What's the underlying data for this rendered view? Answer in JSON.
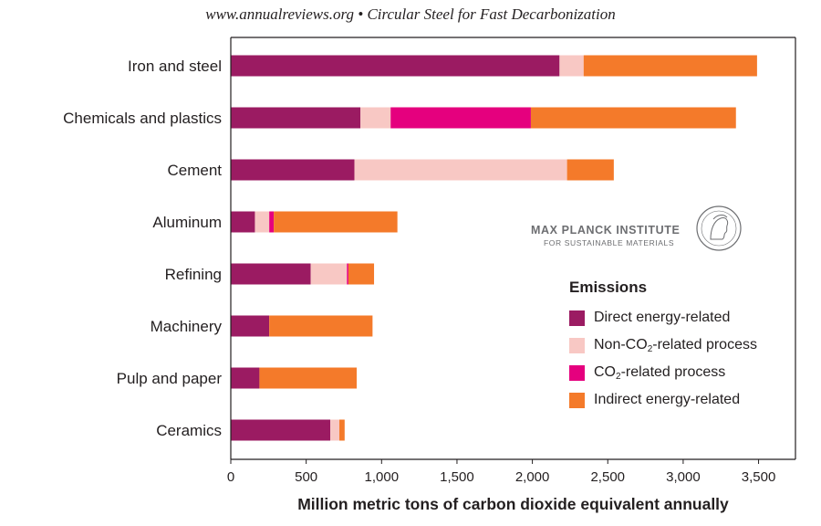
{
  "header": "www.annualreviews.org • Circular Steel for Fast Decarbonization",
  "watermark": {
    "title": "MAX PLANCK INSTITUTE",
    "subtitle": "FOR SUSTAINABLE MATERIALS",
    "seal_icon": "minerva-seal-icon"
  },
  "legend": {
    "title": "Emissions",
    "items": [
      {
        "pre": "Direct energy-related",
        "sub": "",
        "post": "",
        "color": "#9b1b62"
      },
      {
        "pre": "Non-CO",
        "sub": "2",
        "post": "-related process",
        "color": "#f8c8c4"
      },
      {
        "pre": "CO",
        "sub": "2",
        "post": "-related process",
        "color": "#e5007e"
      },
      {
        "pre": "Indirect energy-related",
        "sub": "",
        "post": "",
        "color": "#f47a2a"
      }
    ]
  },
  "chart_data": {
    "type": "bar",
    "orientation": "horizontal",
    "stacked": true,
    "title": "",
    "xlabel": "Million metric tons of carbon dioxide equivalent annually",
    "ylabel": "",
    "xlim": [
      0,
      3700
    ],
    "xticks": [
      0,
      500,
      1000,
      1500,
      2000,
      2500,
      3000,
      3500
    ],
    "xtick_labels": [
      "0",
      "500",
      "1,000",
      "1,500",
      "2,000",
      "2,500",
      "3,000",
      "3,500"
    ],
    "grid": false,
    "legend_position": "right",
    "categories": [
      "Iron and steel",
      "Chemicals and plastics",
      "Cement",
      "Aluminum",
      "Refining",
      "Machinery",
      "Pulp and paper",
      "Ceramics"
    ],
    "series": [
      {
        "name": "Direct energy-related",
        "color": "#9b1b62",
        "values": [
          2180,
          860,
          820,
          160,
          530,
          255,
          190,
          660
        ]
      },
      {
        "name": "Non-CO2-related process",
        "color": "#f8c8c4",
        "values": [
          160,
          200,
          1410,
          95,
          240,
          0,
          0,
          60
        ]
      },
      {
        "name": "CO2-related process",
        "color": "#e5007e",
        "values": [
          0,
          930,
          0,
          30,
          10,
          0,
          0,
          0
        ]
      },
      {
        "name": "Indirect energy-related",
        "color": "#f47a2a",
        "values": [
          1150,
          1360,
          310,
          820,
          170,
          685,
          645,
          35
        ]
      }
    ]
  }
}
